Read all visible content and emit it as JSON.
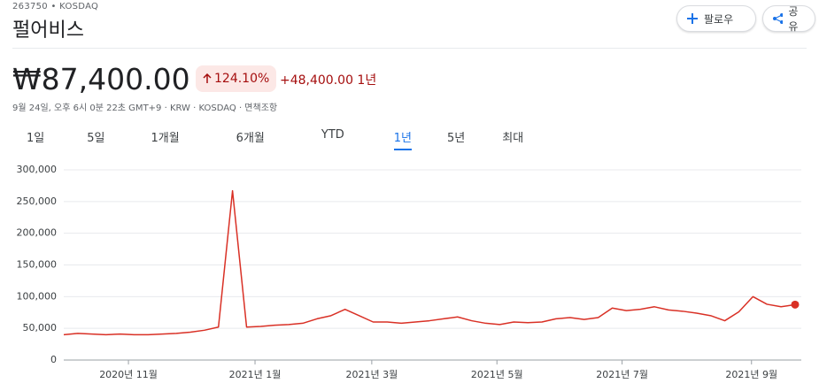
{
  "header": {
    "ticker": "263750 • KOSDAQ",
    "name": "펄어비스",
    "buttons": [
      "팔로우",
      "공유"
    ]
  },
  "quote": {
    "price": "₩87,400.00",
    "change_percent": "124.10%",
    "change_amount": "+48,400.00 1년",
    "meta": "9월 24일, 오후 6시 0분 22초 GMT+9 · KRW · KOSDAQ · 면책조항"
  },
  "tabs": [
    "1일",
    "5일",
    "1개월",
    "6개월",
    "YTD",
    "1년",
    "5년",
    "최대"
  ],
  "chart_data": {
    "type": "line",
    "color": "#d93025",
    "grid": true,
    "xlim": [
      0,
      52
    ],
    "xticks": [
      {
        "value": 4.6,
        "label": "2020년 11월"
      },
      {
        "value": 13.6,
        "label": "2021년 1월"
      },
      {
        "value": 21.9,
        "label": "2021년 3월"
      },
      {
        "value": 30.8,
        "label": "2021년 5월"
      },
      {
        "value": 39.7,
        "label": "2021년 7월"
      },
      {
        "value": 48.9,
        "label": "2021년 9월"
      }
    ],
    "ylim": [
      0,
      300000
    ],
    "yticks": [
      0,
      {
        "value": 50000,
        "label": "50,000"
      },
      {
        "value": 100000,
        "label": "100,000"
      },
      {
        "value": 150000,
        "label": "150,000"
      },
      {
        "value": 200000,
        "label": "200,000"
      },
      {
        "value": 250000,
        "label": "250,000"
      },
      {
        "value": 300000,
        "label": "300,000"
      }
    ],
    "values": [
      40000,
      42000,
      41000,
      40000,
      41000,
      40000,
      40000,
      41000,
      42000,
      44000,
      47000,
      52000,
      267000,
      52000,
      53000,
      55000,
      56000,
      58000,
      65000,
      70000,
      80000,
      70000,
      60000,
      60000,
      58000,
      60000,
      62000,
      65000,
      68000,
      62000,
      58000,
      56000,
      60000,
      59000,
      60000,
      65000,
      67000,
      64000,
      67000,
      82000,
      78000,
      80000,
      84000,
      79000,
      77000,
      74000,
      70000,
      62000,
      76000,
      100000,
      88000,
      84000,
      87400
    ]
  }
}
